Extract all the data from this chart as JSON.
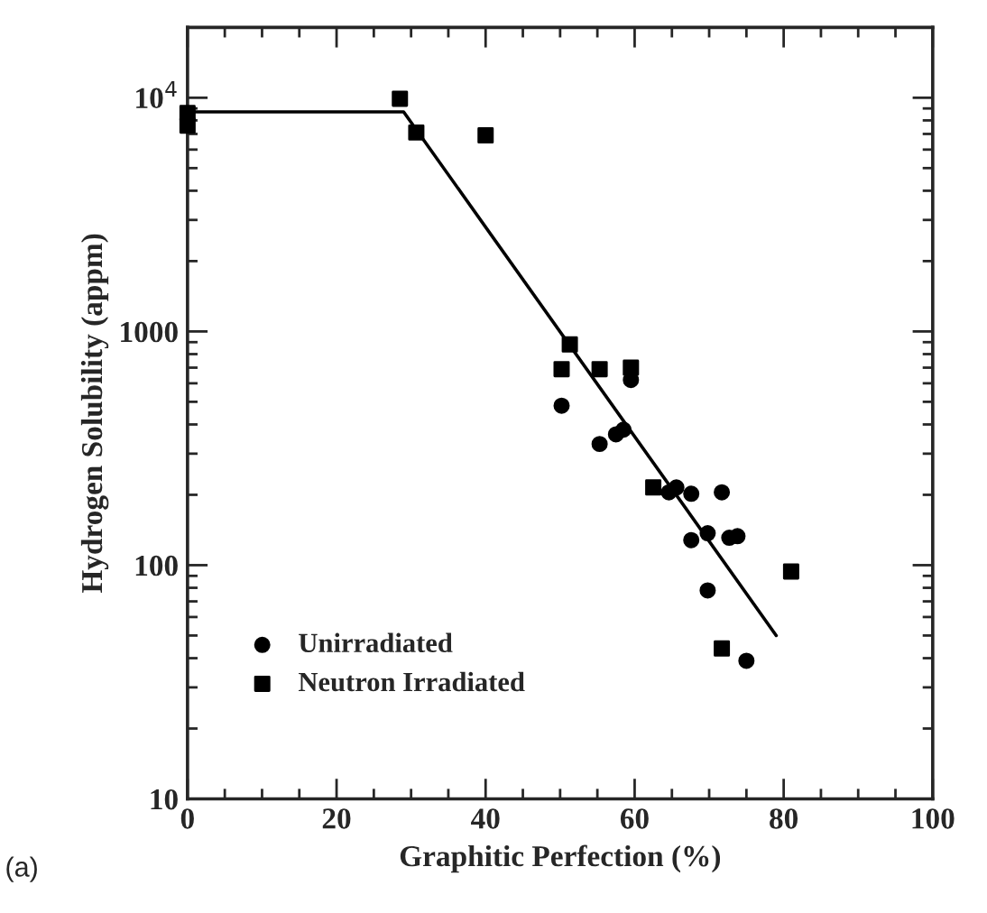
{
  "chart_data": {
    "type": "scatter",
    "xlabel": "Graphitic Perfection (%)",
    "ylabel": "Hydrogen Solubility (appm)",
    "annotations": [
      "(a)"
    ],
    "xlim": [
      0,
      100
    ],
    "xticks": [
      0,
      20,
      40,
      60,
      80,
      100
    ],
    "ylim": [
      10,
      20000
    ],
    "yticks": [
      10,
      100,
      1000,
      {
        "value": 10000,
        "label": "10$^{4}$"
      }
    ],
    "log": "y",
    "legend": "bottom left",
    "grid": false,
    "series": [
      {
        "name": "Unirradiated",
        "marker": "circle",
        "color": "#000000",
        "x": [
          50.2,
          59.5,
          55.3,
          57.5,
          58.5,
          64.6,
          65.6,
          67.6,
          71.7,
          67.6,
          69.8,
          72.7,
          73.8,
          69.8,
          75
        ],
        "values": [
          481,
          620,
          330,
          363,
          380,
          205,
          215,
          202,
          205,
          128,
          137,
          131,
          133,
          78,
          39
        ]
      },
      {
        "name": "Neutron Irradiated",
        "marker": "square",
        "color": "#000000",
        "x": [
          0,
          0,
          28.5,
          30.7,
          40,
          51.3,
          50.2,
          55.3,
          59.5,
          62.5,
          81,
          71.7
        ],
        "values": [
          7600,
          8600,
          9900,
          7100,
          6900,
          880,
          690,
          690,
          700,
          215,
          94,
          44
        ]
      },
      {
        "type": "line",
        "marker": "none",
        "color": "#000000",
        "x": [
          0,
          29,
          79
        ],
        "values": [
          8700,
          8700,
          50
        ]
      }
    ]
  }
}
